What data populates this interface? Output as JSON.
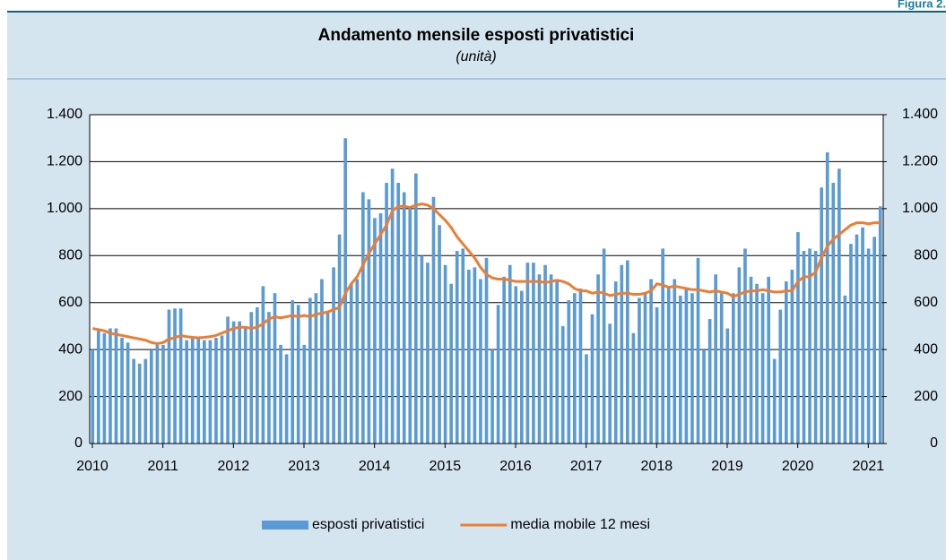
{
  "header": {
    "figure": "Figura 2."
  },
  "chart_data": {
    "type": "bar",
    "title": "Andamento mensile esposti privatistici",
    "subtitle": "(unità)",
    "categories": [
      "2010",
      null,
      null,
      null,
      null,
      null,
      null,
      null,
      null,
      null,
      null,
      null,
      "2011",
      null,
      null,
      null,
      null,
      null,
      null,
      null,
      null,
      null,
      null,
      null,
      "2012",
      null,
      null,
      null,
      null,
      null,
      null,
      null,
      null,
      null,
      null,
      null,
      "2013",
      null,
      null,
      null,
      null,
      null,
      null,
      null,
      null,
      null,
      null,
      null,
      "2014",
      null,
      null,
      null,
      null,
      null,
      null,
      null,
      null,
      null,
      null,
      null,
      "2015",
      null,
      null,
      null,
      null,
      null,
      null,
      null,
      null,
      null,
      null,
      null,
      "2016",
      null,
      null,
      null,
      null,
      null,
      null,
      null,
      null,
      null,
      null,
      null,
      "2017",
      null,
      null,
      null,
      null,
      null,
      null,
      null,
      null,
      null,
      null,
      null,
      "2018",
      null,
      null,
      null,
      null,
      null,
      null,
      null,
      null,
      null,
      null,
      null,
      "2019",
      null,
      null,
      null,
      null,
      null,
      null,
      null,
      null,
      null,
      null,
      null,
      "2020",
      null,
      null,
      null,
      null,
      null,
      null,
      null,
      null,
      null,
      null,
      null,
      "2021",
      null,
      null
    ],
    "series": [
      {
        "name": "esposti privatistici",
        "type": "bar",
        "color": "#5b9bd5",
        "values": [
          400,
          480,
          470,
          490,
          490,
          450,
          430,
          360,
          340,
          360,
          400,
          420,
          420,
          570,
          575,
          575,
          440,
          450,
          450,
          440,
          440,
          450,
          460,
          540,
          520,
          520,
          500,
          560,
          580,
          670,
          560,
          640,
          420,
          380,
          610,
          590,
          420,
          620,
          640,
          700,
          560,
          750,
          890,
          1300,
          680,
          700,
          1070,
          1040,
          960,
          980,
          1110,
          1170,
          1110,
          1070,
          1000,
          1150,
          800,
          770,
          1050,
          930,
          760,
          680,
          820,
          830,
          740,
          750,
          700,
          790,
          400,
          590,
          710,
          760,
          670,
          650,
          770,
          770,
          720,
          760,
          720,
          700,
          500,
          610,
          640,
          660,
          380,
          550,
          720,
          830,
          510,
          690,
          760,
          780,
          470,
          620,
          640,
          700,
          580,
          830,
          670,
          700,
          630,
          660,
          640,
          790,
          400,
          530,
          720,
          640,
          490,
          640,
          750,
          830,
          710,
          680,
          640,
          710,
          360,
          570,
          690,
          740,
          900,
          820,
          830,
          820,
          1090,
          1240,
          1110,
          1170,
          630,
          850,
          890,
          920,
          830,
          880,
          1010
        ]
      },
      {
        "name": "media mobile 12 mesi",
        "type": "line",
        "color": "#ed7d31",
        "values": [
          490,
          485,
          480,
          470,
          465,
          460,
          455,
          450,
          445,
          440,
          430,
          425,
          430,
          445,
          450,
          460,
          455,
          452,
          450,
          452,
          455,
          460,
          470,
          480,
          490,
          495,
          495,
          490,
          495,
          510,
          530,
          540,
          535,
          540,
          545,
          540,
          545,
          540,
          550,
          555,
          560,
          570,
          580,
          640,
          680,
          710,
          760,
          810,
          850,
          890,
          930,
          990,
          1010,
          1010,
          1005,
          1015,
          1020,
          1015,
          1000,
          975,
          950,
          920,
          880,
          850,
          820,
          790,
          750,
          720,
          705,
          700,
          700,
          695,
          690,
          690,
          690,
          690,
          690,
          685,
          690,
          695,
          690,
          680,
          660,
          650,
          650,
          640,
          645,
          640,
          630,
          635,
          640,
          640,
          635,
          635,
          640,
          650,
          680,
          675,
          665,
          670,
          665,
          660,
          655,
          655,
          650,
          645,
          650,
          645,
          640,
          625,
          635,
          645,
          650,
          650,
          655,
          650,
          645,
          645,
          650,
          650,
          690,
          710,
          710,
          730,
          790,
          840,
          870,
          890,
          910,
          930,
          940,
          940,
          935,
          940,
          940
        ]
      }
    ],
    "ylim": [
      0,
      1400
    ],
    "yticks": [
      0,
      200,
      400,
      600,
      800,
      {
        "value": 1000,
        "label": "1.000"
      },
      {
        "value": 1200,
        "label": "1.200"
      },
      {
        "value": 1400,
        "label": "1.400"
      }
    ],
    "y2lim": [
      0,
      1400
    ],
    "y2ticks": [
      0,
      200,
      400,
      600,
      800,
      {
        "value": 1000,
        "label": "1.000"
      },
      {
        "value": 1200,
        "label": "1.200"
      },
      {
        "value": 1400,
        "label": "1.400"
      }
    ],
    "grid": true,
    "legend": "bottom"
  }
}
